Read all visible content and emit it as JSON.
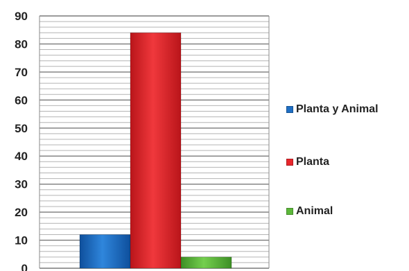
{
  "chart_data": {
    "type": "bar",
    "title": "",
    "xlabel": "",
    "ylabel": "",
    "ylim": [
      0,
      90
    ],
    "y_ticks": [
      "0",
      "10",
      "20",
      "30",
      "40",
      "50",
      "60",
      "70",
      "80",
      "90"
    ],
    "grid": true,
    "legend_position": "right",
    "series": [
      {
        "name": "Planta y Animal",
        "value": 12,
        "color": "#1f6fc4"
      },
      {
        "name": "Planta",
        "value": 84,
        "color": "#e8262b"
      },
      {
        "name": "Animal",
        "value": 4,
        "color": "#5cb83a"
      }
    ]
  }
}
